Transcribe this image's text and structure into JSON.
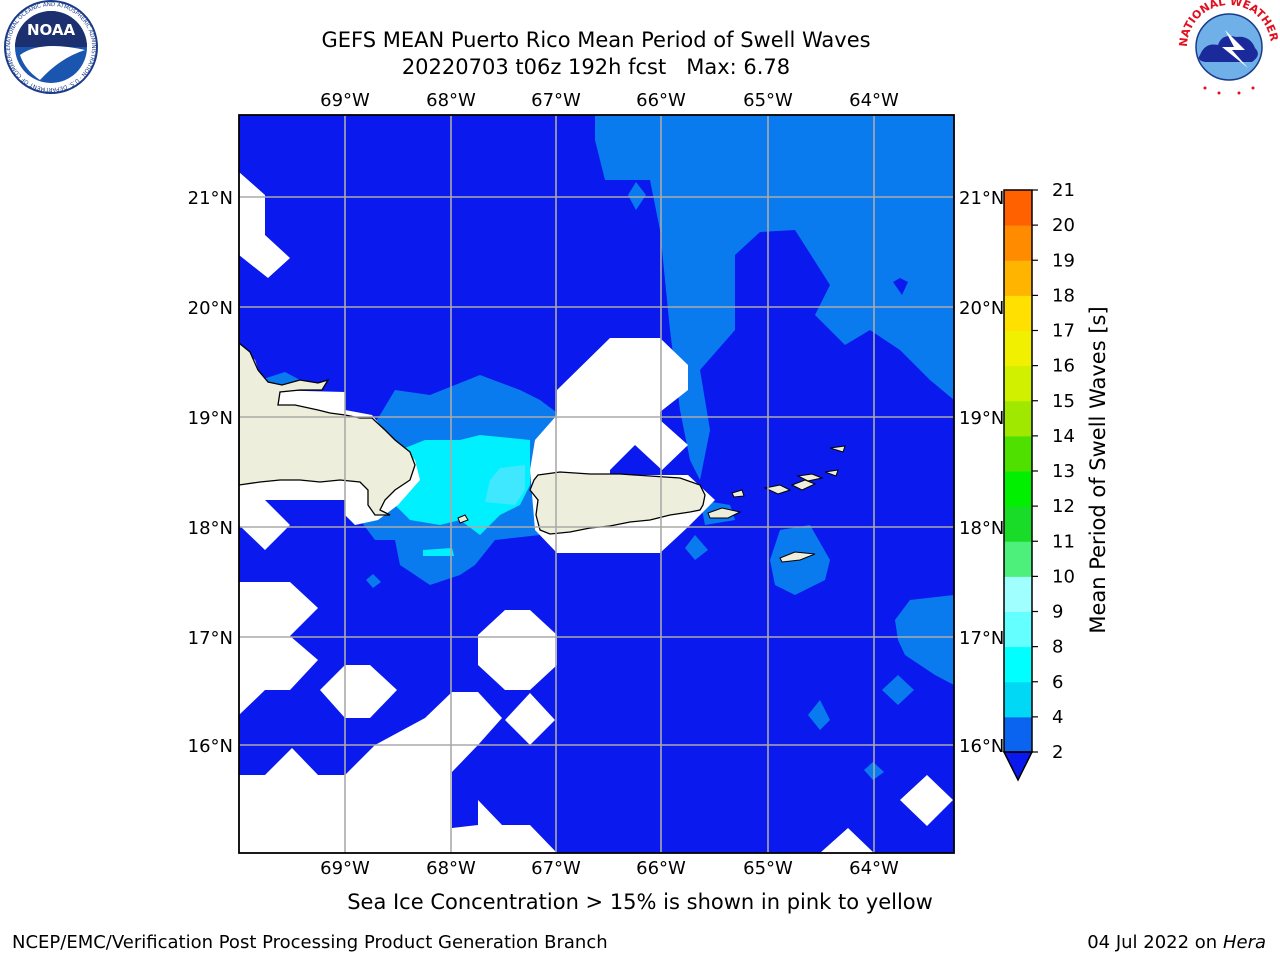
{
  "title_line1": "GEFS MEAN Puerto Rico Mean Period of Swell Waves",
  "title_line2": "20220703 t06z 192h fcst   Max: 6.78",
  "caption": "Sea Ice Concentration > 15% is shown in pink to yellow",
  "footer_left": "NCEP/EMC/Verification Post Processing Product Generation Branch",
  "footer_right_prefix": "04 Jul 2022 on ",
  "footer_right_host": "Hera",
  "logos": {
    "noaa_text": "NOAA",
    "noaa_ring_text": "NATIONAL OCEANIC AND ATMOSPHERIC ADMINISTRATION · U.S. DEPARTMENT OF COMMERCE",
    "nws_ring_text": "NATIONAL WEATHER SERVICE"
  },
  "map": {
    "lon_labels": [
      "69°W",
      "68°W",
      "67°W",
      "66°W",
      "65°W",
      "64°W"
    ],
    "lat_labels": [
      "21°N",
      "20°N",
      "19°N",
      "18°N",
      "17°N",
      "16°N"
    ],
    "colors": {
      "ocean_2_4": "#0a1aef",
      "ocean_4_6": "#0a7aef",
      "ocean_6_8": "#00f0ff",
      "land": "#eeeedd",
      "grid": "#aaaaaa"
    }
  },
  "colorbar": {
    "label": "Mean Period of Swell Waves [s]",
    "ticks": [
      "2",
      "4",
      "6",
      "8",
      "9",
      "10",
      "11",
      "12",
      "13",
      "14",
      "15",
      "16",
      "17",
      "18",
      "19",
      "20",
      "21"
    ],
    "colors": [
      "#0a64f0",
      "#00d8f5",
      "#00ffff",
      "#64ffff",
      "#a0ffff",
      "#4cf07a",
      "#19dc28",
      "#00f000",
      "#50e000",
      "#a0e800",
      "#d0f000",
      "#f0f000",
      "#ffe000",
      "#ffb400",
      "#ff8c00",
      "#ff6000",
      "#ff3000",
      "#ff0000"
    ]
  }
}
